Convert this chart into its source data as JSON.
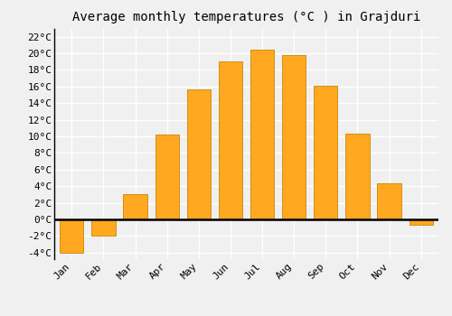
{
  "months": [
    "Jan",
    "Feb",
    "Mar",
    "Apr",
    "May",
    "Jun",
    "Jul",
    "Aug",
    "Sep",
    "Oct",
    "Nov",
    "Dec"
  ],
  "temperatures": [
    -4,
    -2,
    3,
    10.2,
    15.7,
    19,
    20.4,
    19.8,
    16.1,
    10.3,
    4.3,
    -0.7
  ],
  "bar_color": "#FFA820",
  "bar_edge_color": "#CC8800",
  "title": "Average monthly temperatures (°C ) in Grajduri",
  "ylim": [
    -4.8,
    23
  ],
  "yticks": [
    -4,
    -2,
    0,
    2,
    4,
    6,
    8,
    10,
    12,
    14,
    16,
    18,
    20,
    22
  ],
  "background_color": "#f0f0f0",
  "grid_color": "#ffffff",
  "title_fontsize": 10,
  "tick_fontsize": 8
}
